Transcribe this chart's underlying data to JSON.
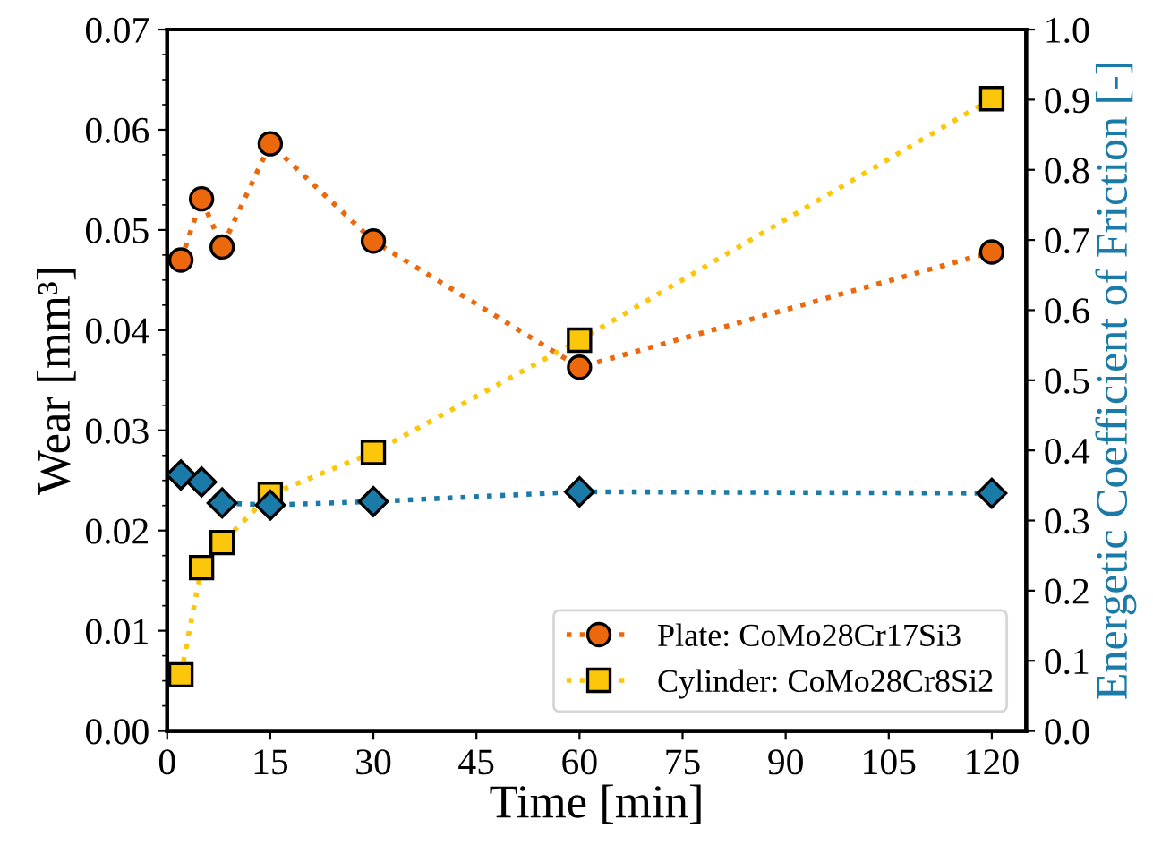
{
  "chart_data": {
    "type": "line",
    "xlabel": "Time [min]",
    "ylabel": "Wear [mm³]",
    "y2label": "Energetic Coefficient of Friction [-]",
    "xlim": [
      0,
      125
    ],
    "xticks": [
      0,
      15,
      30,
      45,
      60,
      75,
      90,
      105,
      120
    ],
    "ylim": [
      0,
      0.07
    ],
    "yticks": [
      {
        "value": 0,
        "label": "0.00"
      },
      0.01,
      0.02,
      0.03,
      0.04,
      0.05,
      0.06,
      0.07
    ],
    "y2lim": [
      0,
      1.0
    ],
    "y2ticks": [
      {
        "value": 0,
        "label": "0.0"
      },
      0.1,
      0.2,
      0.3,
      0.4,
      0.5,
      0.6,
      0.7,
      0.8,
      0.9,
      {
        "value": 1,
        "label": "1.0"
      }
    ],
    "x": [
      2,
      5,
      8,
      15,
      30,
      60,
      120
    ],
    "line_style": "dotted",
    "legend": "bottom right",
    "grid": false,
    "series": [
      {
        "name": "Plate: CoMo28Cr17Si3",
        "color": "#ec680c",
        "marker": "circle",
        "values": [
          0.047,
          0.0531,
          0.0483,
          0.0586,
          0.0489,
          0.0363,
          0.0478
        ]
      },
      {
        "name": "Cylinder: CoMo28Cr8Si2",
        "color": "#fcc70a",
        "marker": "square",
        "values": [
          0.0056,
          0.0163,
          0.0188,
          0.0236,
          0.0278,
          0.039,
          0.0631
        ]
      },
      {
        "color": "#1a7aa8",
        "marker": "diamond",
        "axis": "y2",
        "values": [
          0.365,
          0.355,
          0.325,
          0.322,
          0.327,
          0.341,
          0.339
        ]
      }
    ]
  }
}
